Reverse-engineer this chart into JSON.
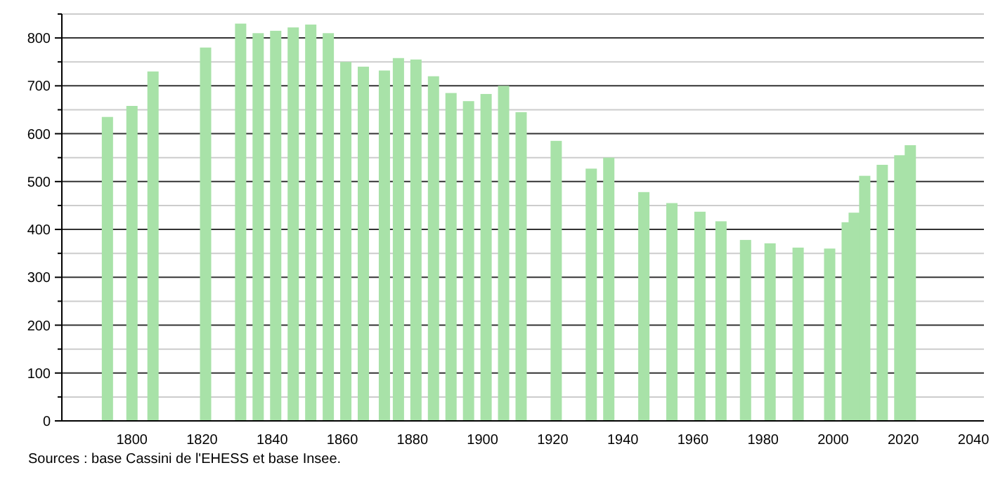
{
  "chart_data": {
    "type": "bar",
    "x": [
      1793,
      1800,
      1806,
      1821,
      1831,
      1836,
      1841,
      1846,
      1851,
      1856,
      1861,
      1866,
      1872,
      1876,
      1881,
      1886,
      1891,
      1896,
      1901,
      1906,
      1911,
      1921,
      1931,
      1936,
      1946,
      1954,
      1962,
      1968,
      1975,
      1982,
      1990,
      1999,
      2004,
      2006,
      2009,
      2014,
      2019,
      2022
    ],
    "values": [
      635,
      658,
      730,
      780,
      830,
      810,
      815,
      822,
      828,
      810,
      750,
      740,
      732,
      758,
      755,
      720,
      685,
      668,
      683,
      700,
      645,
      585,
      527,
      550,
      478,
      455,
      437,
      417,
      378,
      371,
      362,
      360,
      415,
      435,
      512,
      535,
      555,
      576
    ],
    "color": "#a8e2a8",
    "xlim": [
      1778,
      2043
    ],
    "xticks": [
      1800,
      1820,
      1840,
      1860,
      1880,
      1900,
      1920,
      1940,
      1960,
      1980,
      2000,
      2020,
      2040
    ],
    "ylim": [
      0,
      850
    ],
    "yticks": [
      0,
      {
        "value": 50,
        "label": null
      },
      100,
      {
        "value": 150,
        "label": null
      },
      200,
      {
        "value": 250,
        "label": null
      },
      300,
      {
        "value": 350,
        "label": null
      },
      400,
      {
        "value": 450,
        "label": null
      },
      500,
      {
        "value": 550,
        "label": null
      },
      600,
      {
        "value": 650,
        "label": null
      },
      700,
      {
        "value": 750,
        "label": null
      },
      800,
      {
        "value": 850,
        "label": null
      }
    ],
    "grid": true,
    "annotations": [
      "Sources : base Cassini de l'EHESS et base Insee."
    ]
  }
}
